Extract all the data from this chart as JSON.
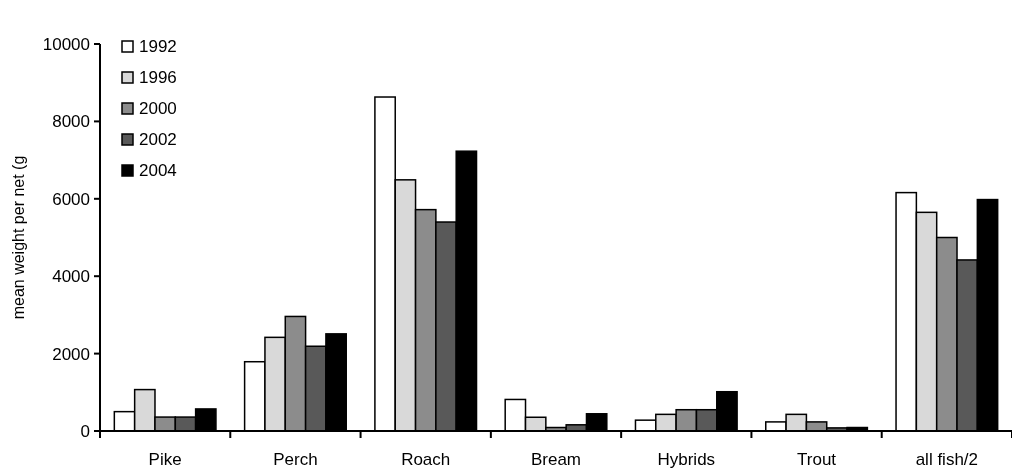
{
  "chart_data": {
    "type": "bar",
    "ylabel": "mean weight per net (g",
    "categories": [
      "Pike",
      "Perch",
      "Roach",
      "Bream",
      "Hybrids",
      "Trout",
      "all fish/2"
    ],
    "series": [
      {
        "name": "1992",
        "color": "#ffffff",
        "values": [
          500,
          1790,
          8630,
          815,
          280,
          235,
          6160
        ]
      },
      {
        "name": "1996",
        "color": "#d9d9d9",
        "values": [
          1070,
          2420,
          6490,
          355,
          430,
          430,
          5650
        ]
      },
      {
        "name": "2000",
        "color": "#8c8c8c",
        "values": [
          360,
          2960,
          5720,
          90,
          550,
          235,
          5000
        ]
      },
      {
        "name": "2002",
        "color": "#595959",
        "values": [
          360,
          2190,
          5400,
          160,
          550,
          80,
          4420
        ]
      },
      {
        "name": "2004",
        "color": "#000000",
        "values": [
          570,
          2510,
          7230,
          445,
          1015,
          90,
          5980
        ]
      }
    ],
    "ylim": [
      0,
      10000
    ],
    "yticks": [
      0,
      2000,
      4000,
      6000,
      8000,
      10000
    ],
    "legend": "top left",
    "grid": false
  }
}
